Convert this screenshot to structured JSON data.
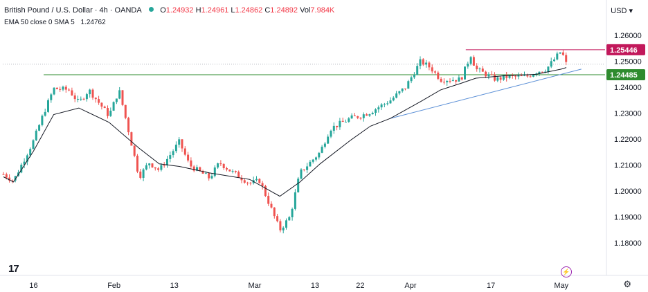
{
  "header": {
    "title": "British Pound / U.S. Dollar · 4h · OANDA",
    "o_label": "O",
    "o_value": "1.24932",
    "h_label": "H",
    "h_value": "1.24961",
    "l_label": "L",
    "l_value": "1.24862",
    "c_label": "C",
    "c_value": "1.24892",
    "vol_label": "Vol",
    "vol_value": "7.984K"
  },
  "indicators": {
    "ema_label": "EMA 50 close 0 SMA 5",
    "ema_value": "1.24762"
  },
  "currency_selector": "USD",
  "colors": {
    "up": "#26a69a",
    "down": "#ef5350",
    "resistance": "#c2185b",
    "support": "#2e8b2e",
    "trendline": "#5b8fd6",
    "ema": "#131722"
  },
  "chart_data": {
    "type": "line",
    "title": "British Pound / U.S. Dollar · 4h · OANDA",
    "x_tick_labels": [
      "16",
      "Feb",
      "13",
      "Mar",
      "13",
      "22",
      "Apr",
      "17",
      "May"
    ],
    "y_tick_labels": [
      "1.26000",
      "1.25000",
      "1.24000",
      "1.23000",
      "1.22000",
      "1.21000",
      "1.20000",
      "1.19000",
      "1.18000"
    ],
    "ylim": [
      1.1755,
      1.2635
    ],
    "price_series": {
      "name": "",
      "x": [
        "Jan 10",
        "Jan 12",
        "Jan 16",
        "Jan 18",
        "Jan 20",
        "Jan 23",
        "Jan 25",
        "Jan 27",
        "Jan 31",
        "Feb 2",
        "Feb 6",
        "Feb 8",
        "Feb 10",
        "Feb 14",
        "Feb 16",
        "Feb 20",
        "Feb 22",
        "Feb 24",
        "Feb 28",
        "Mar 2",
        "Mar 6",
        "Mar 8",
        "Mar 10",
        "Mar 14",
        "Mar 16",
        "Mar 20",
        "Mar 22",
        "Mar 24",
        "Mar 28",
        "Mar 31",
        "Apr 3",
        "Apr 5",
        "Apr 7",
        "Apr 11",
        "Apr 13",
        "Apr 14",
        "Apr 18",
        "Apr 20",
        "Apr 24",
        "Apr 26",
        "Apr 28",
        "May 1",
        "May 2"
      ],
      "values": [
        1.2065,
        1.204,
        1.2195,
        1.23,
        1.2395,
        1.239,
        1.234,
        1.239,
        1.229,
        1.239,
        1.2055,
        1.211,
        1.208,
        1.219,
        1.21,
        1.205,
        1.211,
        1.208,
        1.203,
        1.204,
        1.185,
        1.19,
        1.207,
        1.215,
        1.224,
        1.228,
        1.229,
        1.2305,
        1.235,
        1.24,
        1.25,
        1.2475,
        1.243,
        1.243,
        1.2525,
        1.247,
        1.243,
        1.244,
        1.244,
        1.246,
        1.247,
        1.254,
        1.2489
      ]
    },
    "ema_series": {
      "name": "EMA 50 close 0",
      "x": [
        "Jan 10",
        "Jan 12",
        "Jan 16",
        "Jan 20",
        "Jan 25",
        "Jan 31",
        "Feb 6",
        "Feb 10",
        "Feb 14",
        "Feb 20",
        "Feb 28",
        "Mar 6",
        "Mar 10",
        "Mar 14",
        "Mar 20",
        "Mar 24",
        "Mar 28",
        "Apr 3",
        "Apr 7",
        "Apr 11",
        "Apr 14",
        "Apr 20",
        "Apr 26",
        "May 1",
        "May 2"
      ],
      "values": [
        1.2055,
        1.2035,
        1.2155,
        1.2295,
        1.232,
        1.2265,
        1.2165,
        1.2105,
        1.2095,
        1.207,
        1.2045,
        1.198,
        1.2035,
        1.2105,
        1.2195,
        1.225,
        1.228,
        1.2345,
        1.239,
        1.2415,
        1.2435,
        1.2445,
        1.245,
        1.247,
        1.2476
      ]
    },
    "levels": [
      {
        "name": "1.25446",
        "value": 1.25446,
        "label": "1.25446",
        "color": "#c2185b"
      },
      {
        "name": "1.24485",
        "value": 1.24485,
        "label": "1.24485",
        "color": "#2e8b2e"
      }
    ],
    "trendline": {
      "from_date": "Mar 28",
      "from_value": 1.228,
      "to_date": "May 5",
      "to_value": 1.247
    },
    "grid": false
  }
}
